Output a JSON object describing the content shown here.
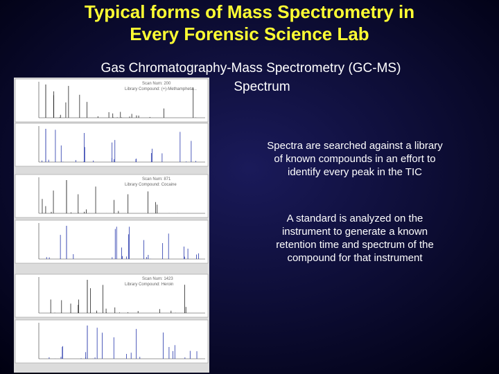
{
  "title": [
    "Typical forms of Mass Spectrometry in",
    "Every Forensic Science Lab"
  ],
  "subtitle": [
    "Gas Chromatography-Mass Spectrometry (GC-MS)",
    "Spectrum"
  ],
  "notes": [
    [
      "Spectra are searched against a library",
      "of known compounds in an effort to",
      "identify every peak in the TIC"
    ],
    [
      "A standard is analyzed on the",
      "instrument to generate a known",
      "retention time and spectrum of the",
      "compound for that instrument"
    ]
  ],
  "figure": {
    "panels": [
      {
        "scan": "Scan Num: 200",
        "library": "Library Compound: (+)-Methampheta..."
      },
      {
        "scan": "Scan Num: 871",
        "library": "Library Compound: Cocaine"
      },
      {
        "scan": "Scan Num: 1423",
        "library": "Library Compound: Heroin"
      }
    ]
  }
}
